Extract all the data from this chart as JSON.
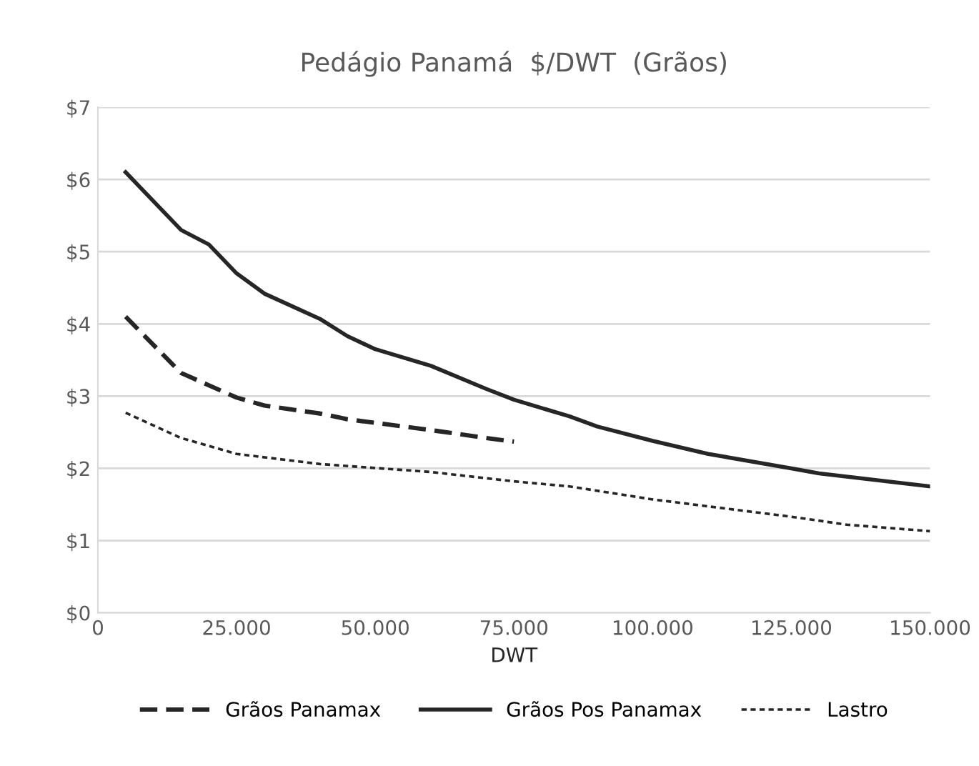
{
  "chart_data": {
    "type": "line",
    "title": "Pedágio Panamá  $/DWT  (Grãos)",
    "xlabel": "DWT",
    "xlim": [
      0,
      150000
    ],
    "xticks": [
      {
        "value": 0,
        "label": "0"
      },
      {
        "value": 25000,
        "label": "25.000"
      },
      {
        "value": 50000,
        "label": "50.000"
      },
      {
        "value": 75000,
        "label": "75.000"
      },
      {
        "value": 100000,
        "label": "100.000"
      },
      {
        "value": 125000,
        "label": "125.000"
      },
      {
        "value": 150000,
        "label": "150.000"
      }
    ],
    "ylim": [
      0,
      7
    ],
    "yticks": [
      {
        "value": 0,
        "label": "$0"
      },
      {
        "value": 1,
        "label": "$1"
      },
      {
        "value": 2,
        "label": "$2"
      },
      {
        "value": 3,
        "label": "$3"
      },
      {
        "value": 4,
        "label": "$4"
      },
      {
        "value": 5,
        "label": "$5"
      },
      {
        "value": 6,
        "label": "$6"
      },
      {
        "value": 7,
        "label": "$7"
      }
    ],
    "grid": "y",
    "legend": "bottom",
    "series": [
      {
        "name": "Grãos Panamax",
        "color": "#262626",
        "line_style": "dashed",
        "x": [
          5000,
          15000,
          20000,
          25000,
          30000,
          40000,
          45000,
          60000,
          70000,
          75000
        ],
        "values": [
          4.1,
          3.32,
          3.15,
          2.98,
          2.87,
          2.76,
          2.68,
          2.53,
          2.42,
          2.37
        ]
      },
      {
        "name": "Grãos Pos Panamax",
        "color": "#262626",
        "line_style": "solid",
        "x": [
          5000,
          15000,
          20000,
          25000,
          30000,
          40000,
          45000,
          50000,
          60000,
          70000,
          75000,
          85000,
          90000,
          100000,
          110000,
          125000,
          130000,
          150000
        ],
        "values": [
          6.1,
          5.3,
          5.1,
          4.7,
          4.42,
          4.07,
          3.83,
          3.65,
          3.42,
          3.1,
          2.95,
          2.72,
          2.58,
          2.38,
          2.2,
          2.0,
          1.93,
          1.75
        ]
      },
      {
        "name": "Lastro",
        "color": "#262626",
        "line_style": "dotted",
        "x": [
          5000,
          15000,
          25000,
          40000,
          60000,
          75000,
          85000,
          100000,
          125000,
          135000,
          150000
        ],
        "values": [
          2.77,
          2.42,
          2.2,
          2.06,
          1.95,
          1.82,
          1.75,
          1.57,
          1.33,
          1.22,
          1.13
        ]
      }
    ]
  }
}
